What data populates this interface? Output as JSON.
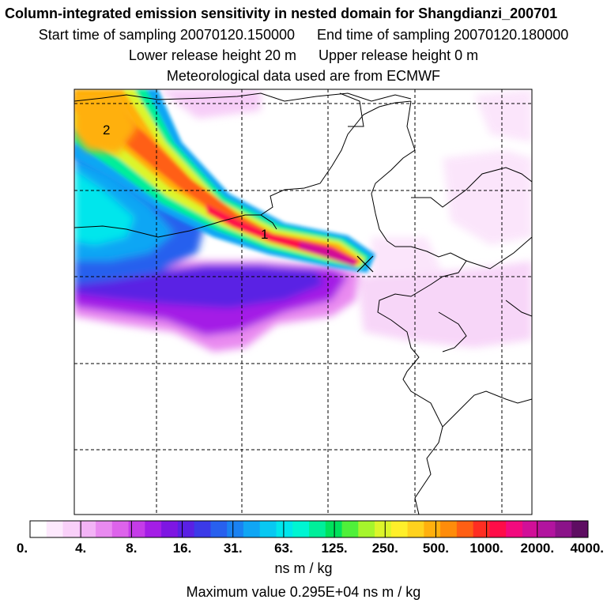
{
  "titles": {
    "line1": "Column-integrated emission sensitivity in nested domain for Shangdianzi_200701",
    "start_label": "Start time of sampling 20070120.150000",
    "end_label": "End time of sampling 20070120.180000",
    "lower_label": "Lower release height   20 m",
    "upper_label": "Upper release height    0 m",
    "line4": "Meteorological data used are from ECMWF"
  },
  "map": {
    "markers": [
      "2",
      "1"
    ],
    "release_site_marker": "x-cross",
    "colors": {
      "coastline": "#000000",
      "grid": "#000000",
      "background": "#ffffff"
    }
  },
  "colorbar": {
    "labels": [
      "0.",
      "4.",
      "8.",
      "16.",
      "31.",
      "63.",
      "125.",
      "250.",
      "500.",
      "1000.",
      "2000.",
      "4000."
    ],
    "colors": [
      "#ffffff",
      "#fde9fd",
      "#f9d0f9",
      "#f3b3f6",
      "#e98af0",
      "#dd63eb",
      "#c53ce8",
      "#a41ee6",
      "#7e16e2",
      "#5a20e4",
      "#3b3ae8",
      "#2860ee",
      "#1a82f2",
      "#10a6f4",
      "#08c8f2",
      "#00e6ec",
      "#00f5d2",
      "#00ee9a",
      "#00e25c",
      "#4ff03a",
      "#a6f52c",
      "#dcf52a",
      "#ffef2a",
      "#ffd21e",
      "#ffb00e",
      "#ff8c0a",
      "#ff5f14",
      "#ff2e22",
      "#ff0d48",
      "#f20a7e",
      "#d10f98",
      "#b2149f",
      "#8b1389",
      "#5e0d62"
    ],
    "units": "ns m / kg"
  },
  "max_value": "Maximum value  0.295E+04 ns m / kg"
}
